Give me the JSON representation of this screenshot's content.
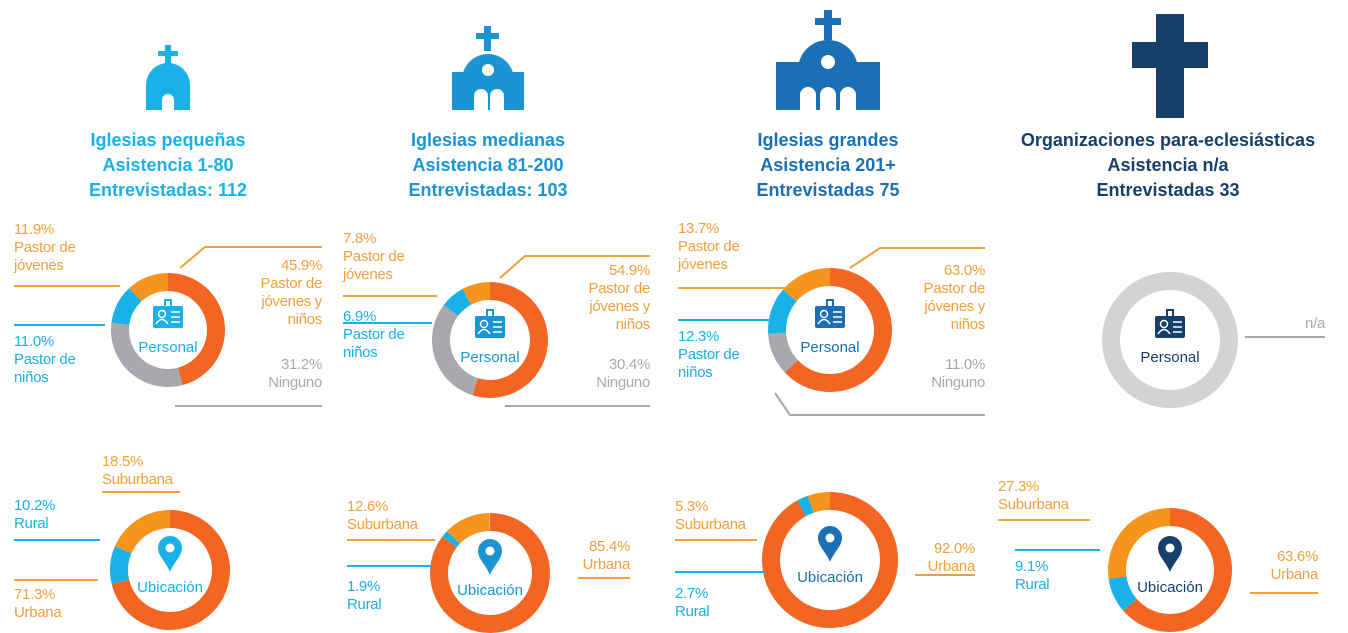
{
  "columns": [
    {
      "title": [
        "Iglesias pequeñas",
        "Asistencia 1-80",
        "Entrevistadas: 112"
      ],
      "color": "#1ab0e8"
    },
    {
      "title": [
        "Iglesias medianas",
        "Asistencia 81-200",
        "Entrevistadas: 103"
      ],
      "color": "#1a94d2"
    },
    {
      "title": [
        "Iglesias grandes",
        "Asistencia 201+",
        "Entrevistadas 75"
      ],
      "color": "#1a6fb5"
    },
    {
      "title": [
        "Organizaciones para-eclesiásticas",
        "Asistencia n/a",
        "Entrevistadas 33"
      ],
      "color": "#173f69"
    }
  ],
  "chart_data": [
    {
      "type": "pie",
      "center_label": "Personal",
      "center_color": "#1ab0e8",
      "categories": [
        "Pastor de jóvenes y niños",
        "Ninguno",
        "Pastor de niños",
        "Pastor de jóvenes"
      ],
      "values": [
        45.9,
        31.2,
        11.0,
        11.9
      ],
      "value_labels": [
        "45.9%",
        "31.2%",
        "11.0%",
        "11.9%"
      ],
      "colors": [
        "#f26522",
        "#a7a9ac",
        "#1ab0e8",
        "#f7941d"
      ],
      "label_colors": [
        "#f3a03c",
        "#a7a9ac",
        "#1ab0e8",
        "#f3a03c"
      ]
    },
    {
      "type": "pie",
      "center_label": "Personal",
      "center_color": "#1a94d2",
      "categories": [
        "Pastor de jóvenes y niños",
        "Ninguno",
        "Pastor de niños",
        "Pastor de jóvenes"
      ],
      "values": [
        54.9,
        30.4,
        6.9,
        7.8
      ],
      "value_labels": [
        "54.9%",
        "30.4%",
        "6.9%",
        "7.8%"
      ],
      "colors": [
        "#f26522",
        "#a7a9ac",
        "#1ab0e8",
        "#f7941d"
      ],
      "label_colors": [
        "#f3a03c",
        "#a7a9ac",
        "#1ab0e8",
        "#f3a03c"
      ]
    },
    {
      "type": "pie",
      "center_label": "Personal",
      "center_color": "#1a6fb5",
      "categories": [
        "Pastor de jóvenes y niños",
        "Ninguno",
        "Pastor de niños",
        "Pastor de jóvenes"
      ],
      "values": [
        63.0,
        11.0,
        12.3,
        13.7
      ],
      "value_labels": [
        "63.0%",
        "11.0%",
        "12.3%",
        "13.7%"
      ],
      "colors": [
        "#f26522",
        "#a7a9ac",
        "#1ab0e8",
        "#f7941d"
      ],
      "label_colors": [
        "#f3a03c",
        "#a7a9ac",
        "#1ab0e8",
        "#f3a03c"
      ]
    },
    {
      "type": "pie",
      "center_label": "Personal",
      "center_color": "#173f69",
      "categories": [
        null
      ],
      "values": [
        null
      ],
      "value_labels": [
        "n/a"
      ],
      "colors": [
        "#d1d3d4"
      ],
      "label_colors": [
        "#a7a9ac"
      ]
    },
    {
      "type": "pie",
      "center_label": "Ubicación",
      "center_color": "#1ab0e8",
      "categories": [
        "Urbana",
        "Rural",
        "Suburbana"
      ],
      "values": [
        71.3,
        10.2,
        18.5
      ],
      "value_labels": [
        "71.3%",
        "10.2%",
        "18.5%"
      ],
      "colors": [
        "#f26522",
        "#1ab0e8",
        "#f7941d"
      ],
      "label_colors": [
        "#f3a03c",
        "#1ab0e8",
        "#f3a03c"
      ]
    },
    {
      "type": "pie",
      "center_label": "Ubicación",
      "center_color": "#1a94d2",
      "categories": [
        "Urbana",
        "Rural",
        "Suburbana"
      ],
      "values": [
        85.4,
        1.9,
        12.6
      ],
      "value_labels": [
        "85.4%",
        "1.9%",
        "12.6%"
      ],
      "colors": [
        "#f26522",
        "#1ab0e8",
        "#f7941d"
      ],
      "label_colors": [
        "#f3a03c",
        "#1ab0e8",
        "#f3a03c"
      ]
    },
    {
      "type": "pie",
      "center_label": "Ubicación",
      "center_color": "#1a6fb5",
      "categories": [
        "Urbana",
        "Rural",
        "Suburbana"
      ],
      "values": [
        92.0,
        2.7,
        5.3
      ],
      "value_labels": [
        "92.0%",
        "2.7%",
        "5.3%"
      ],
      "colors": [
        "#f26522",
        "#1ab0e8",
        "#f7941d"
      ],
      "label_colors": [
        "#f3a03c",
        "#1ab0e8",
        "#f3a03c"
      ]
    },
    {
      "type": "pie",
      "center_label": "Ubicación",
      "center_color": "#173f69",
      "categories": [
        "Urbana",
        "Rural",
        "Suburbana"
      ],
      "values": [
        63.6,
        9.1,
        27.3
      ],
      "value_labels": [
        "63.6%",
        "9.1%",
        "27.3%"
      ],
      "colors": [
        "#f26522",
        "#1ab0e8",
        "#f7941d"
      ],
      "label_colors": [
        "#f3a03c",
        "#1ab0e8",
        "#f3a03c"
      ]
    }
  ]
}
